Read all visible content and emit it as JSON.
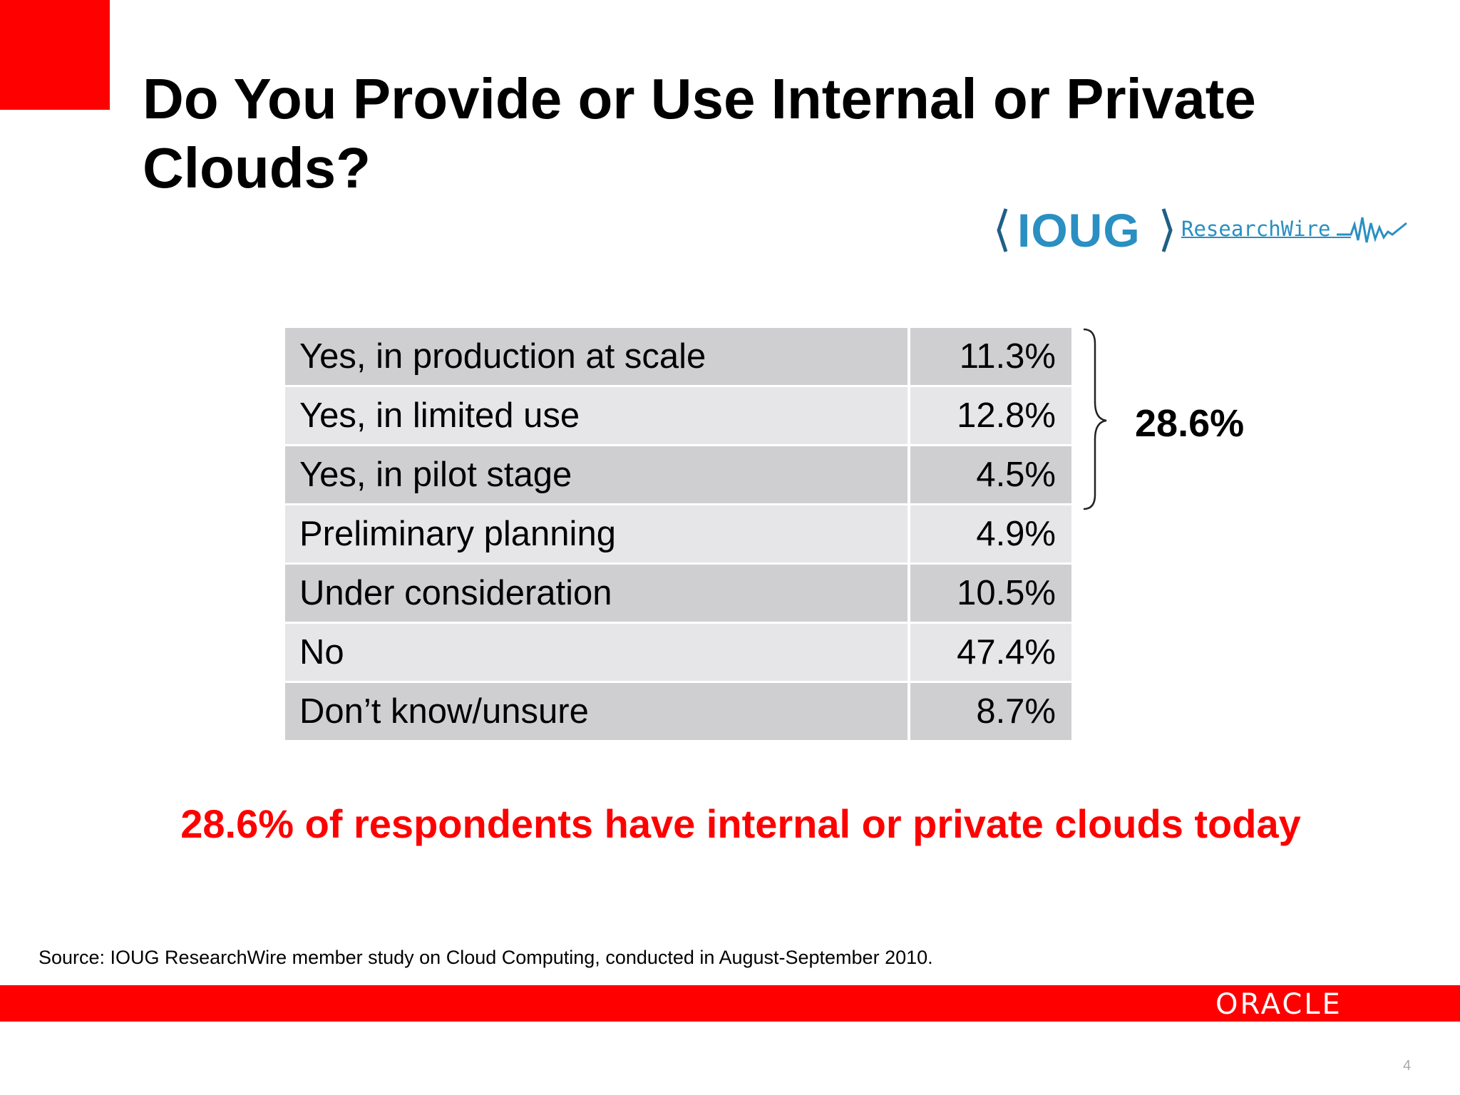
{
  "slide": {
    "title": "Do You Provide or Use Internal or Private Clouds?",
    "logo": {
      "left_text": "IOUG",
      "right_text": "ResearchWire",
      "icon": "waveform-icon",
      "color": "#2a8fc2"
    },
    "rows": [
      {
        "label": "Yes, in production at scale",
        "value": "11.3%"
      },
      {
        "label": "Yes, in limited use",
        "value": "12.8%"
      },
      {
        "label": "Yes, in pilot stage",
        "value": "4.5%"
      },
      {
        "label": "Preliminary planning",
        "value": "4.9%"
      },
      {
        "label": "Under consideration",
        "value": "10.5%"
      },
      {
        "label": "No",
        "value": "47.4%"
      },
      {
        "label": "Don’t know/unsure",
        "value": "8.7%"
      }
    ],
    "bracket_total": "28.6%",
    "highlight": "28.6% of respondents have internal or private clouds today",
    "source": "Source: IOUG ResearchWire member study on Cloud Computing, conducted in August-September 2010.",
    "footer": {
      "brand": "ORACLE",
      "page_number": "4"
    },
    "colors": {
      "accent": "#ff0000",
      "row_dark": "#cfcfd1",
      "row_light": "#e6e6e8"
    }
  }
}
